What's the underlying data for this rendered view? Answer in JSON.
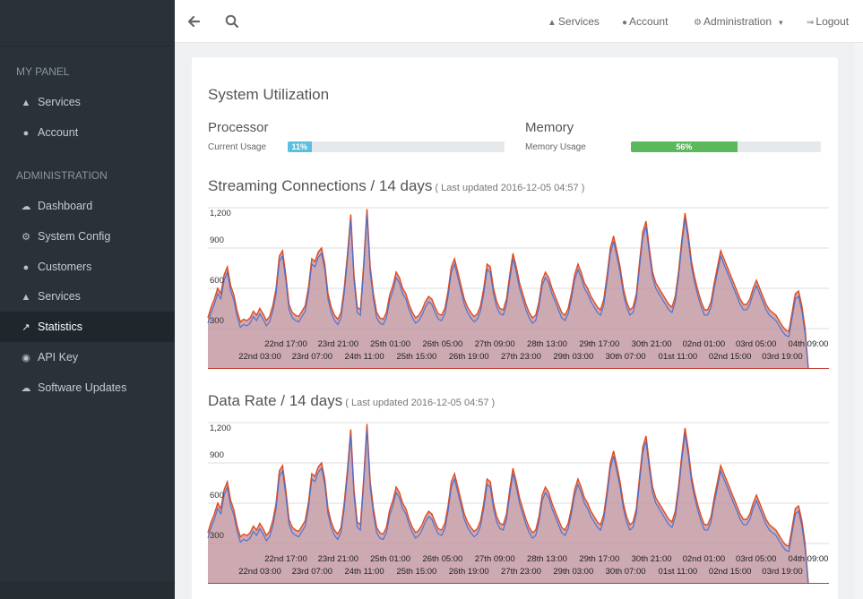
{
  "sidebar": {
    "sections": [
      {
        "label": "MY PANEL",
        "items": [
          {
            "label": "Services",
            "icon": "sitemap-icon"
          },
          {
            "label": "Account",
            "icon": "user-icon"
          }
        ]
      },
      {
        "label": "ADMINISTRATION",
        "items": [
          {
            "label": "Dashboard",
            "icon": "cloud-icon"
          },
          {
            "label": "System Config",
            "icon": "gears-icon"
          },
          {
            "label": "Customers",
            "icon": "users-icon"
          },
          {
            "label": "Services",
            "icon": "sitemap-icon"
          },
          {
            "label": "Statistics",
            "icon": "line-chart-icon",
            "active": true
          },
          {
            "label": "API Key",
            "icon": "globe-icon"
          },
          {
            "label": "Software Updates",
            "icon": "cloud-download-icon"
          }
        ]
      }
    ]
  },
  "topbar": {
    "services": "Services",
    "account": "Account",
    "administration": "Administration",
    "logout": "Logout"
  },
  "page": {
    "title": "System Utilization",
    "processor": {
      "heading": "Processor",
      "label": "Current Usage",
      "value": "11%",
      "percent": 11,
      "color": "#5bc0de"
    },
    "memory": {
      "heading": "Memory",
      "label": "Memory Usage",
      "value": "56%",
      "percent": 56,
      "color": "#5cb85c"
    }
  },
  "charts": [
    {
      "title": "Streaming Connections / 14 days",
      "updated": "( Last updated 2016-12-05 04:57 )"
    },
    {
      "title": "Data Rate / 14 days",
      "updated": "( Last updated 2016-12-05 04:57 )"
    }
  ],
  "chart_data": [
    {
      "type": "area",
      "title": "Streaming Connections / 14 days",
      "y_ticks": [
        "300",
        "600",
        "900",
        "1,200"
      ],
      "ylim": [
        0,
        1200
      ],
      "x_ticks_top": [
        "22nd 17:00",
        "23rd 21:00",
        "25th 01:00",
        "26th 05:00",
        "27th 09:00",
        "28th 13:00",
        "29th 17:00",
        "30th 21:00",
        "02nd 01:00",
        "03rd 05:00",
        "04th 09:00"
      ],
      "x_ticks_bottom": [
        "22nd 03:00",
        "23rd 07:00",
        "24th 11:00",
        "25th 15:00",
        "26th 19:00",
        "27th 23:00",
        "29th 03:00",
        "30th 07:00",
        "01st 11:00",
        "02nd 15:00",
        "03rd 19:00"
      ],
      "colors": {
        "series_a": "#e24a1b",
        "series_b": "#4a6fd0",
        "fill": "#c49aa4"
      },
      "series": [
        {
          "values": [
            380,
            460,
            520,
            600,
            560,
            700,
            760,
            620,
            550,
            430,
            350,
            370,
            360,
            380,
            430,
            400,
            450,
            410,
            360,
            390,
            470,
            600,
            840,
            880,
            700,
            480,
            420,
            400,
            390,
            430,
            470,
            610,
            820,
            800,
            870,
            900,
            780,
            560,
            460,
            400,
            370,
            420,
            600,
            850,
            1150,
            700,
            460,
            440,
            780,
            1190,
            760,
            560,
            420,
            380,
            370,
            420,
            550,
            620,
            720,
            680,
            600,
            560,
            480,
            420,
            380,
            400,
            440,
            500,
            540,
            520,
            460,
            410,
            400,
            450,
            580,
            760,
            820,
            720,
            620,
            520,
            460,
            420,
            390,
            410,
            470,
            600,
            780,
            760,
            600,
            500,
            450,
            440,
            520,
            700,
            860,
            760,
            640,
            560,
            480,
            420,
            380,
            400,
            500,
            660,
            720,
            680,
            600,
            540,
            480,
            420,
            400,
            450,
            560,
            700,
            780,
            720,
            640,
            600,
            540,
            500,
            460,
            440,
            520,
            700,
            900,
            990,
            880,
            760,
            600,
            500,
            440,
            460,
            560,
            800,
            1020,
            1100,
            900,
            720,
            640,
            600,
            560,
            520,
            480,
            460,
            540,
            720,
            960,
            1160,
            1000,
            800,
            680,
            580,
            500,
            440,
            440,
            500,
            640,
            760,
            880,
            820,
            760,
            700,
            640,
            580,
            520,
            480,
            480,
            520,
            600,
            660,
            600,
            540,
            480,
            440,
            420,
            400,
            360,
            320,
            290,
            280,
            420,
            560,
            580,
            470,
            300,
            0
          ]
        }
      ]
    },
    {
      "type": "area",
      "title": "Data Rate / 14 days",
      "y_ticks": [
        "300",
        "600",
        "900",
        "1,200"
      ],
      "ylim": [
        0,
        1200
      ],
      "x_ticks_top": [
        "22nd 17:00",
        "23rd 21:00",
        "25th 01:00",
        "26th 05:00",
        "27th 09:00",
        "28th 13:00",
        "29th 17:00",
        "30th 21:00",
        "02nd 01:00",
        "03rd 05:00",
        "04th 09:00"
      ],
      "x_ticks_bottom": [
        "22nd 03:00",
        "23rd 07:00",
        "24th 11:00",
        "25th 15:00",
        "26th 19:00",
        "27th 23:00",
        "29th 03:00",
        "30th 07:00",
        "01st 11:00",
        "02nd 15:00",
        "03rd 19:00"
      ],
      "colors": {
        "series_a": "#e24a1b",
        "series_b": "#4a6fd0",
        "fill": "#c49aa4"
      },
      "series": [
        {
          "values": [
            380,
            460,
            520,
            600,
            560,
            700,
            760,
            620,
            550,
            430,
            350,
            370,
            360,
            380,
            430,
            400,
            450,
            410,
            360,
            390,
            470,
            600,
            840,
            880,
            700,
            480,
            420,
            400,
            390,
            430,
            470,
            610,
            820,
            800,
            870,
            900,
            780,
            560,
            460,
            400,
            370,
            420,
            600,
            850,
            1150,
            700,
            460,
            440,
            780,
            1190,
            760,
            560,
            420,
            380,
            370,
            420,
            550,
            620,
            720,
            680,
            600,
            560,
            480,
            420,
            380,
            400,
            440,
            500,
            540,
            520,
            460,
            410,
            400,
            450,
            580,
            760,
            820,
            720,
            620,
            520,
            460,
            420,
            390,
            410,
            470,
            600,
            780,
            760,
            600,
            500,
            450,
            440,
            520,
            700,
            860,
            760,
            640,
            560,
            480,
            420,
            380,
            400,
            500,
            660,
            720,
            680,
            600,
            540,
            480,
            420,
            400,
            450,
            560,
            700,
            780,
            720,
            640,
            600,
            540,
            500,
            460,
            440,
            520,
            700,
            900,
            990,
            880,
            760,
            600,
            500,
            440,
            460,
            560,
            800,
            1020,
            1100,
            900,
            720,
            640,
            600,
            560,
            520,
            480,
            460,
            540,
            720,
            960,
            1160,
            1000,
            800,
            680,
            580,
            500,
            440,
            440,
            500,
            640,
            760,
            880,
            820,
            760,
            700,
            640,
            580,
            520,
            480,
            480,
            520,
            600,
            660,
            600,
            540,
            480,
            440,
            420,
            400,
            360,
            320,
            290,
            280,
            420,
            560,
            580,
            470,
            300,
            0
          ]
        }
      ]
    }
  ]
}
